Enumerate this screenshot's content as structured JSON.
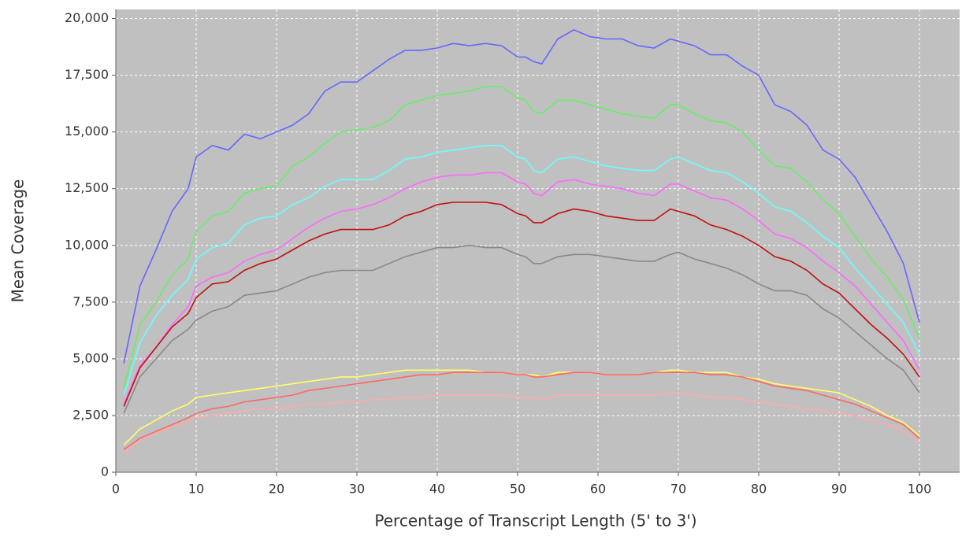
{
  "chart_data": {
    "type": "line",
    "x_label": "Percentage of Transcript Length (5' to 3')",
    "y_label": "Mean Coverage",
    "x": [
      1,
      3,
      5,
      7,
      9,
      10,
      12,
      14,
      16,
      18,
      20,
      22,
      24,
      26,
      28,
      30,
      32,
      34,
      36,
      38,
      40,
      42,
      44,
      46,
      48,
      50,
      51,
      52,
      53,
      55,
      57,
      59,
      61,
      63,
      65,
      67,
      69,
      70,
      72,
      74,
      76,
      78,
      80,
      82,
      84,
      86,
      88,
      90,
      92,
      94,
      96,
      98,
      100
    ],
    "series": [
      {
        "color": "#6666ff",
        "values": [
          4800,
          8200,
          9800,
          11500,
          12500,
          13900,
          14400,
          14200,
          14900,
          14700,
          15000,
          15300,
          15800,
          16800,
          17200,
          17200,
          17700,
          18200,
          18600,
          18600,
          18700,
          18900,
          18800,
          18900,
          18800,
          18300,
          18300,
          18100,
          18000,
          19100,
          19500,
          19200,
          19100,
          19100,
          18800,
          18700,
          19100,
          19000,
          18800,
          18400,
          18400,
          17900,
          17500,
          16200,
          15900,
          15300,
          14200,
          13800,
          13000,
          11800,
          10600,
          9200,
          6600
        ]
      },
      {
        "color": "#66ee66",
        "values": [
          3700,
          6500,
          7500,
          8700,
          9400,
          10600,
          11300,
          11500,
          12300,
          12500,
          12600,
          13500,
          13900,
          14500,
          15000,
          15100,
          15200,
          15500,
          16200,
          16400,
          16600,
          16700,
          16800,
          17000,
          17000,
          16500,
          16400,
          15900,
          15800,
          16400,
          16400,
          16200,
          16000,
          15800,
          15700,
          15600,
          16200,
          16200,
          15800,
          15500,
          15400,
          15000,
          14200,
          13500,
          13400,
          12800,
          12000,
          11400,
          10400,
          9400,
          8600,
          7600,
          5900
        ]
      },
      {
        "color": "#66ffff",
        "values": [
          3400,
          5700,
          6900,
          7800,
          8500,
          9400,
          9900,
          10100,
          10900,
          11200,
          11300,
          11800,
          12100,
          12600,
          12900,
          12900,
          12900,
          13300,
          13800,
          13900,
          14100,
          14200,
          14300,
          14400,
          14400,
          13900,
          13800,
          13300,
          13200,
          13800,
          13900,
          13700,
          13500,
          13400,
          13300,
          13300,
          13800,
          13900,
          13600,
          13300,
          13200,
          12800,
          12300,
          11700,
          11500,
          11000,
          10400,
          9900,
          9000,
          8200,
          7400,
          6600,
          5200
        ]
      },
      {
        "color": "#ff66ff",
        "values": [
          3000,
          4700,
          5500,
          6500,
          7300,
          8200,
          8600,
          8800,
          9300,
          9600,
          9800,
          10300,
          10800,
          11200,
          11500,
          11600,
          11800,
          12100,
          12500,
          12800,
          13000,
          13100,
          13100,
          13200,
          13200,
          12800,
          12700,
          12300,
          12200,
          12800,
          12900,
          12700,
          12600,
          12500,
          12300,
          12200,
          12700,
          12700,
          12400,
          12100,
          12000,
          11600,
          11100,
          10500,
          10300,
          9900,
          9300,
          8800,
          8200,
          7400,
          6600,
          5800,
          4500
        ]
      },
      {
        "color": "#c01010",
        "values": [
          2900,
          4600,
          5500,
          6400,
          7000,
          7700,
          8300,
          8400,
          8900,
          9200,
          9400,
          9800,
          10200,
          10500,
          10700,
          10700,
          10700,
          10900,
          11300,
          11500,
          11800,
          11900,
          11900,
          11900,
          11800,
          11400,
          11300,
          11000,
          11000,
          11400,
          11600,
          11500,
          11300,
          11200,
          11100,
          11100,
          11600,
          11500,
          11300,
          10900,
          10700,
          10400,
          10000,
          9500,
          9300,
          8900,
          8300,
          7900,
          7200,
          6500,
          5900,
          5200,
          4200
        ]
      },
      {
        "color": "#888888",
        "values": [
          2600,
          4200,
          5000,
          5800,
          6300,
          6700,
          7100,
          7300,
          7800,
          7900,
          8000,
          8300,
          8600,
          8800,
          8900,
          8900,
          8900,
          9200,
          9500,
          9700,
          9900,
          9900,
          10000,
          9900,
          9900,
          9600,
          9500,
          9200,
          9200,
          9500,
          9600,
          9600,
          9500,
          9400,
          9300,
          9300,
          9600,
          9700,
          9400,
          9200,
          9000,
          8700,
          8300,
          8000,
          8000,
          7800,
          7200,
          6800,
          6200,
          5600,
          5000,
          4500,
          3500
        ]
      },
      {
        "color": "#ffff66",
        "values": [
          1200,
          1900,
          2300,
          2700,
          3000,
          3300,
          3400,
          3500,
          3600,
          3700,
          3800,
          3900,
          4000,
          4100,
          4200,
          4200,
          4300,
          4400,
          4500,
          4500,
          4500,
          4500,
          4500,
          4400,
          4400,
          4300,
          4300,
          4300,
          4200,
          4400,
          4400,
          4400,
          4300,
          4300,
          4300,
          4400,
          4500,
          4500,
          4400,
          4400,
          4400,
          4200,
          4100,
          3900,
          3800,
          3700,
          3600,
          3500,
          3200,
          2900,
          2500,
          2200,
          1600
        ]
      },
      {
        "color": "#ff6666",
        "values": [
          1000,
          1500,
          1800,
          2100,
          2400,
          2600,
          2800,
          2900,
          3100,
          3200,
          3300,
          3400,
          3600,
          3700,
          3800,
          3900,
          4000,
          4100,
          4200,
          4300,
          4300,
          4400,
          4400,
          4400,
          4400,
          4300,
          4300,
          4200,
          4200,
          4300,
          4400,
          4400,
          4300,
          4300,
          4300,
          4400,
          4400,
          4400,
          4400,
          4300,
          4300,
          4200,
          4000,
          3800,
          3700,
          3600,
          3400,
          3200,
          3000,
          2700,
          2400,
          2100,
          1500
        ]
      },
      {
        "color": "#ffaaaa",
        "values": [
          900,
          1400,
          1700,
          2000,
          2200,
          2400,
          2500,
          2600,
          2700,
          2800,
          2800,
          2900,
          3000,
          3000,
          3100,
          3100,
          3200,
          3200,
          3300,
          3300,
          3400,
          3400,
          3400,
          3400,
          3400,
          3300,
          3300,
          3300,
          3200,
          3400,
          3400,
          3400,
          3400,
          3400,
          3400,
          3400,
          3500,
          3500,
          3400,
          3300,
          3300,
          3200,
          3100,
          3000,
          2900,
          2800,
          2700,
          2600,
          2500,
          2300,
          2100,
          1800,
          1300
        ]
      }
    ],
    "xlim": [
      0,
      105
    ],
    "ylim": [
      0,
      20400
    ],
    "xticks": [
      0,
      10,
      20,
      30,
      40,
      50,
      60,
      70,
      80,
      90,
      100
    ],
    "yticks": [
      0,
      {
        "value": 2500,
        "label": "2,500"
      },
      {
        "value": 5000,
        "label": "5,000"
      },
      {
        "value": 7500,
        "label": "7,500"
      },
      {
        "value": 10000,
        "label": "10,000"
      },
      {
        "value": 12500,
        "label": "12,500"
      },
      {
        "value": 15000,
        "label": "15,000"
      },
      {
        "value": 17500,
        "label": "17,500"
      },
      {
        "value": 20000,
        "label": "20,000"
      }
    ],
    "grid": true
  }
}
